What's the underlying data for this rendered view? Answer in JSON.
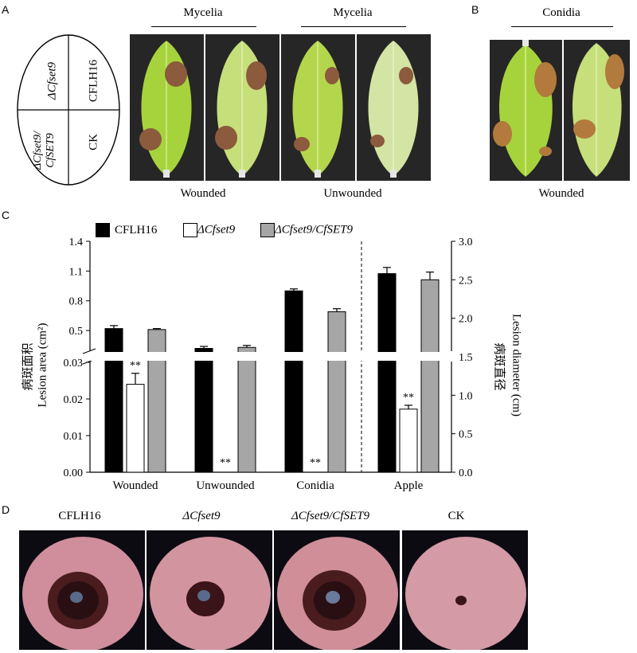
{
  "panels": {
    "a": "A",
    "b": "B",
    "c": "C",
    "d": "D"
  },
  "panelA": {
    "group_titles": [
      "Mycelia",
      "Mycelia"
    ],
    "captions": [
      "Wounded",
      "Unwounded"
    ],
    "ellipse_labels": {
      "top_left": "ΔCfset9",
      "top_right": "CFLH16",
      "bottom_left_line1": "ΔCfset9/",
      "bottom_left_line2": "CfSET9",
      "bottom_right": "CK"
    }
  },
  "panelB": {
    "title": "Conidia",
    "caption": "Wounded"
  },
  "panelD": {
    "labels": [
      "CFLH16",
      "ΔCfset9",
      "ΔCfset9/CfSET9",
      "CK"
    ]
  },
  "colors": {
    "CFLH16": "#000000",
    "ΔCfset9": "#ffffff",
    "ΔCfset9/CfSET9": "#a6a6a6",
    "leaf": "#a7cf4a",
    "lesion": "#8a5a3a",
    "apple": "#c98a9a"
  },
  "chart_data": {
    "type": "bar",
    "categories": [
      "Wounded",
      "Unwounded",
      "Conidia",
      "Apple"
    ],
    "series": [
      {
        "name": "CFLH16",
        "values": [
          0.52,
          0.32,
          0.9,
          2.58
        ]
      },
      {
        "name": "ΔCfset9",
        "values": [
          0.024,
          0.0,
          0.0,
          0.82
        ]
      },
      {
        "name": "ΔCfset9/CfSET9",
        "values": [
          0.51,
          0.33,
          0.69,
          2.5
        ]
      }
    ],
    "errors": [
      [
        0.03,
        0.02,
        0.02,
        0.08
      ],
      [
        0.003,
        0,
        0,
        0.05
      ],
      [
        0.01,
        0.02,
        0.03,
        0.1
      ]
    ],
    "significance": [
      "**",
      "**",
      "**",
      "**"
    ],
    "left_axis": {
      "label": "Lesion area (cm²)",
      "label_cn": "病斑面积",
      "lower_ticks": [
        "0.00",
        "0.01",
        "0.02",
        "0.03"
      ],
      "upper_ticks": [
        "0.5",
        "0.8",
        "1.1",
        "1.4"
      ],
      "lower_range": [
        0,
        0.03
      ],
      "upper_range": [
        0.3,
        1.4
      ]
    },
    "right_axis": {
      "label": "Lesion diameter (cm)",
      "label_cn": "病斑直径",
      "ticks": [
        "0.0",
        "0.5",
        "1.0",
        "1.5",
        "2.0",
        "2.5",
        "3.0"
      ],
      "range": [
        0,
        3
      ]
    },
    "axis_break": "true"
  }
}
